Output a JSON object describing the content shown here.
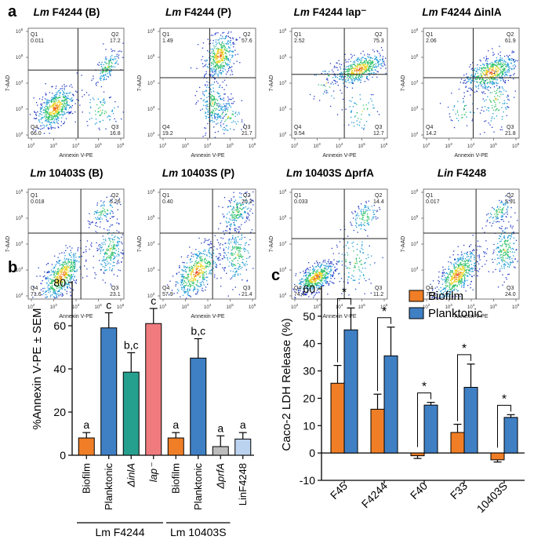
{
  "panel_a": {
    "label": "a",
    "x_axis_label": "Annexin V-PE",
    "y_axis_label": "7-AAD",
    "tick_exponents": [
      "2",
      "3",
      "4",
      "5",
      "6"
    ],
    "tick_base": "10",
    "plots": [
      {
        "title_italic": "Lm",
        "title_rest": " F4244 (B)",
        "q1": "0.011",
        "q2": "17.2",
        "q3": "16.8",
        "q4": "66.0"
      },
      {
        "title_italic": "Lm",
        "title_rest": " F4244 (P)",
        "q1": "1.49",
        "q2": "57.6",
        "q3": "21.7",
        "q4": "19.2"
      },
      {
        "title_italic": "Lm",
        "title_rest": " F4244 lap⁻",
        "q1": "2.52",
        "q2": "75.3",
        "q3": "12.7",
        "q4": "9.54"
      },
      {
        "title_italic": "Lm",
        "title_rest": " F4244 ΔinlA",
        "q1": "2.06",
        "q2": "61.9",
        "q3": "21.8",
        "q4": "14.2"
      },
      {
        "title_italic": "Lm",
        "title_rest": " 10403S (B)",
        "q1": "0.018",
        "q2": "5.26",
        "q3": "23.1",
        "q4": "71.6"
      },
      {
        "title_italic": "Lm",
        "title_rest": " 10403S (P)",
        "q1": "0.40",
        "q2": "20.3",
        "q3": "21.4",
        "q4": "57.9"
      },
      {
        "title_italic": "Lm",
        "title_rest": " 10403S ΔprfA",
        "q1": "0.033",
        "q2": "14.4",
        "q3": "11.2",
        "q4": "74.4"
      },
      {
        "title_italic": "Lin",
        "title_rest": " F4248",
        "q1": "0.017",
        "q2": "5.91",
        "q3": "24.0",
        "q4": "70.1"
      }
    ],
    "quadrant_labels": [
      "Q1",
      "Q2",
      "Q3",
      "Q4"
    ]
  },
  "panel_b": {
    "label": "b",
    "chart_data": {
      "type": "bar",
      "ylabel": "%Annexin V-PE ± SEM",
      "ylim": [
        0,
        80
      ],
      "yticks": [
        0,
        20,
        40,
        60,
        80
      ],
      "categories": [
        "Biofilm",
        "Planktonic",
        "ΔinlA",
        "lap⁻",
        "Biofilm",
        "Planktonic",
        "ΔprfA",
        "LinF4248"
      ],
      "values": [
        8,
        59,
        38.5,
        61,
        8,
        45,
        4,
        7.5
      ],
      "errors": [
        2.5,
        7,
        9,
        7,
        2.5,
        9,
        5,
        3
      ],
      "colors": [
        "#f07e26",
        "#3f7fc4",
        "#26a08e",
        "#ef7b7f",
        "#f07e26",
        "#3f7fc4",
        "#bdbdbd",
        "#bcd3ef"
      ],
      "letters": [
        "a",
        "c",
        "b,c",
        "c",
        "a",
        "b,c",
        "a",
        "a"
      ],
      "groups": [
        {
          "name": "Lm F4244",
          "start": 0,
          "end": 3
        },
        {
          "name": "Lm 10403S",
          "start": 4,
          "end": 6
        }
      ]
    }
  },
  "panel_c": {
    "label": "c",
    "chart_data": {
      "type": "bar",
      "ylabel": "Caco-2 LDH Release (%)",
      "ylim": [
        -10,
        60
      ],
      "yticks": [
        -10,
        0,
        10,
        20,
        30,
        40,
        50,
        60
      ],
      "categories": [
        "F45",
        "F4244",
        "F40",
        "F33",
        "10403S"
      ],
      "series": [
        {
          "name": "Biofilm",
          "color": "#f07e26",
          "values": [
            25.5,
            16,
            -1,
            7.5,
            -2.5
          ],
          "errors": [
            6.5,
            5.5,
            1,
            3,
            0.8
          ]
        },
        {
          "name": "Planktonic",
          "color": "#3f7fc4",
          "values": [
            45,
            35.5,
            17.5,
            24,
            13
          ],
          "errors": [
            8,
            10.5,
            1,
            8.5,
            1
          ]
        }
      ],
      "significance": [
        "*",
        "*",
        "*",
        "*",
        "*"
      ]
    }
  }
}
